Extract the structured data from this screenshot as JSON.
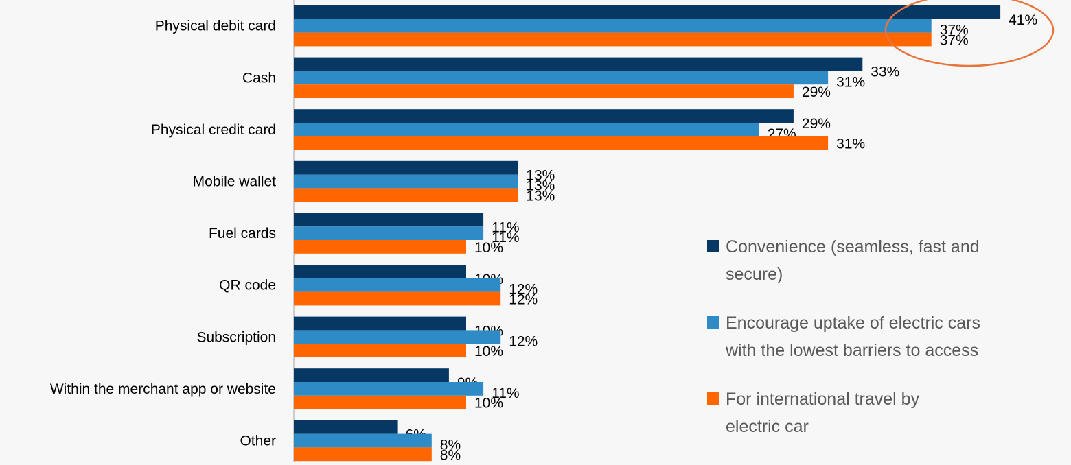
{
  "chart_data": {
    "type": "bar",
    "orientation": "horizontal",
    "categories": [
      "Physical debit card",
      "Cash",
      "Physical credit card",
      "Mobile wallet",
      "Fuel cards",
      "QR code",
      "Subscription",
      "Within the merchant app or website",
      "Other"
    ],
    "series": [
      {
        "name": "Convenience (seamless, fast and secure)",
        "legend_lines": [
          "Convenience (seamless, fast and",
          "secure)"
        ],
        "color": "#073763",
        "values": [
          41,
          33,
          29,
          13,
          11,
          10,
          10,
          9,
          6
        ],
        "labels": [
          "41%",
          "33%",
          "29%",
          "13%",
          "11%",
          "10%",
          "10%",
          "9%",
          "6%"
        ]
      },
      {
        "name": "Encourage uptake of electric cars with the lowest barriers to access",
        "legend_lines": [
          "Encourage uptake of electric cars",
          "with the lowest barriers to access"
        ],
        "color": "#2e8bc6",
        "values": [
          37,
          31,
          27,
          13,
          11,
          12,
          12,
          11,
          8
        ],
        "labels": [
          "37%",
          "31%",
          "27%",
          "13%",
          "11%",
          "12%",
          "12%",
          "11%",
          "8%"
        ]
      },
      {
        "name": "For international travel by electric car",
        "legend_lines": [
          "For international travel by",
          "electric car"
        ],
        "color": "#ff6600",
        "values": [
          37,
          29,
          31,
          13,
          10,
          12,
          10,
          10,
          8
        ],
        "labels": [
          "37%",
          "29%",
          "31%",
          "13%",
          "10%",
          "12%",
          "10%",
          "10%",
          "8%"
        ]
      }
    ],
    "xlim": [
      0,
      45
    ],
    "grid": false,
    "legend_position": "right",
    "annotation": {
      "type": "ellipse",
      "highlights": "Physical debit card",
      "color": "#e8743b"
    },
    "axis_color": "#bfbfbf"
  }
}
